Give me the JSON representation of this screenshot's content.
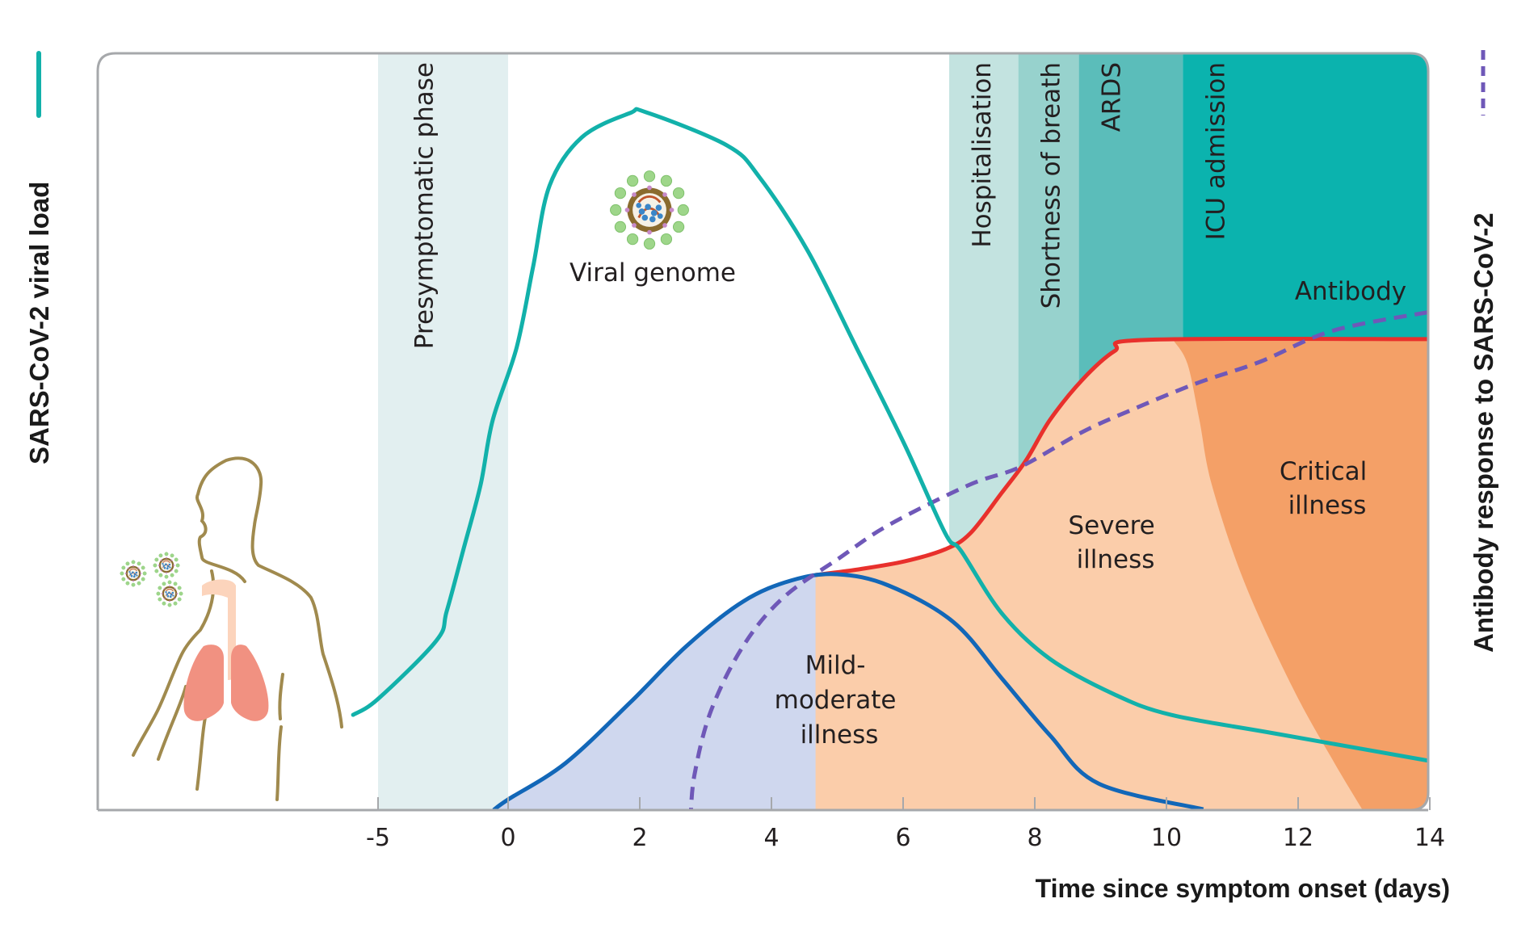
{
  "chart_data": {
    "type": "area",
    "title": "",
    "xlabel": "Time since symptom onset (days)",
    "ylabel_left": "SARS-CoV-2 viral load",
    "ylabel_right": "Antibody response to SARS-CoV-2",
    "x_ticks": [
      -5,
      0,
      2,
      4,
      6,
      8,
      10,
      12,
      14
    ],
    "x_tick_labels": [
      "-5",
      "0",
      "2",
      "4",
      "6",
      "8",
      "10",
      "12",
      "14"
    ],
    "xlim": [
      -7.5,
      14
    ],
    "ylim": [
      0,
      1
    ],
    "y_units": "relative (normalised 0-1, no tick labels)",
    "grid": false,
    "phases": [
      {
        "label": "Presymptomatic phase",
        "start": -5,
        "end": 0,
        "color": "#e2eff0"
      },
      {
        "label": "Hospitalisation",
        "start": 6.7,
        "end": 7.75,
        "color": "#c3e3e0"
      },
      {
        "label": "Shortness of breath",
        "start": 7.75,
        "end": 8.67,
        "color": "#97d2cd"
      },
      {
        "label": "ARDS",
        "start": 8.67,
        "end": 10.25,
        "color": "#5bbdba"
      },
      {
        "label": "ICU admission",
        "start": 10.25,
        "end": 14,
        "color": "#0bb3ae"
      }
    ],
    "series": [
      {
        "name": "SARS-CoV-2 viral load",
        "style": "solid",
        "color": "#12b1aa",
        "points": [
          [
            -5.96,
            0.126
          ],
          [
            -5.0,
            0.147
          ],
          [
            -2.76,
            0.224
          ],
          [
            -2.36,
            0.263
          ],
          [
            -1.74,
            0.342
          ],
          [
            -1.06,
            0.43
          ],
          [
            -0.59,
            0.516
          ],
          [
            0.13,
            0.612
          ],
          [
            0.38,
            0.719
          ],
          [
            0.63,
            0.826
          ],
          [
            1.12,
            0.89
          ],
          [
            1.85,
            0.922
          ],
          [
            2.1,
            0.923
          ],
          [
            3.33,
            0.879
          ],
          [
            3.82,
            0.837
          ],
          [
            4.55,
            0.74
          ],
          [
            5.29,
            0.612
          ],
          [
            6.02,
            0.484
          ],
          [
            6.64,
            0.366
          ],
          [
            6.88,
            0.343
          ],
          [
            7.5,
            0.26
          ],
          [
            8.23,
            0.2
          ],
          [
            9.21,
            0.153
          ],
          [
            10.07,
            0.126
          ],
          [
            11.67,
            0.101
          ],
          [
            14,
            0.065
          ]
        ]
      },
      {
        "name": "Antibody",
        "style": "dashed",
        "color": "#6f58b8",
        "points": [
          [
            2.77,
            -0.014
          ],
          [
            2.83,
            0.046
          ],
          [
            3.08,
            0.131
          ],
          [
            3.57,
            0.217
          ],
          [
            4.18,
            0.281
          ],
          [
            5.04,
            0.334
          ],
          [
            5.78,
            0.377
          ],
          [
            7.0,
            0.43
          ],
          [
            7.78,
            0.454
          ],
          [
            8.72,
            0.5
          ],
          [
            9.46,
            0.529
          ],
          [
            10.44,
            0.564
          ],
          [
            11.42,
            0.593
          ],
          [
            12.52,
            0.634
          ],
          [
            14,
            0.659
          ]
        ]
      }
    ],
    "areas": [
      {
        "name": "Mild-moderate illness",
        "fill": "#cfd7ee",
        "stroke": "#1267b8",
        "points": [
          [
            -0.56,
            0
          ],
          [
            0,
            0.014
          ],
          [
            0.87,
            0.062
          ],
          [
            1.85,
            0.142
          ],
          [
            2.71,
            0.217
          ],
          [
            3.57,
            0.276
          ],
          [
            4.31,
            0.304
          ],
          [
            5.0,
            0.312
          ],
          [
            5.78,
            0.297
          ],
          [
            6.76,
            0.249
          ],
          [
            7.5,
            0.174
          ],
          [
            8.23,
            0.099
          ],
          [
            8.97,
            0.035
          ],
          [
            10.56,
            0.001
          ]
        ]
      },
      {
        "name": "Severe illness",
        "fill": "#fbcdaa",
        "stroke": "#e8302c",
        "points": [
          [
            4.67,
            0.311
          ],
          [
            5.29,
            0.318
          ],
          [
            6.02,
            0.329
          ],
          [
            6.64,
            0.345
          ],
          [
            7.02,
            0.366
          ],
          [
            7.5,
            0.42
          ],
          [
            7.87,
            0.463
          ],
          [
            8.23,
            0.516
          ],
          [
            8.72,
            0.569
          ],
          [
            9.21,
            0.607
          ],
          [
            9.7,
            0.622
          ],
          [
            14,
            0.623
          ]
        ]
      },
      {
        "name": "Critical illness",
        "fill": "#f4a067",
        "boundary": [
          [
            10.11,
            0.621
          ],
          [
            10.32,
            0.59
          ],
          [
            10.5,
            0.516
          ],
          [
            10.69,
            0.43
          ],
          [
            11.18,
            0.302
          ],
          [
            11.91,
            0.163
          ],
          [
            12.52,
            0.067
          ],
          [
            12.98,
            0
          ]
        ]
      }
    ],
    "annotations": [
      {
        "text": "Viral genome",
        "x": 2.1,
        "y": 0.77
      },
      {
        "text": "Antibody",
        "x": 12.8,
        "y": 0.69
      },
      {
        "text": "Mild-\nmoderate\nillness",
        "x": 5.03,
        "y": 0.19
      },
      {
        "text": "Severe\nillness",
        "x": 9.35,
        "y": 0.43
      },
      {
        "text": "Critical\nillness",
        "x": 11.8,
        "y": 0.54
      }
    ],
    "legend": "axis-title swatches (left: solid teal, right: dashed purple)"
  },
  "labels": {
    "viral_genome": "Viral genome",
    "antibody": "Antibody",
    "mild_line1": "Mild-",
    "mild_line2": "moderate",
    "mild_line3": "illness",
    "severe_line1": "Severe",
    "severe_line2": "illness",
    "critical_line1": "Critical",
    "critical_line2": "illness"
  },
  "icons": {
    "virus": "virus-particle-icon",
    "human": "human-lungs-figure"
  }
}
